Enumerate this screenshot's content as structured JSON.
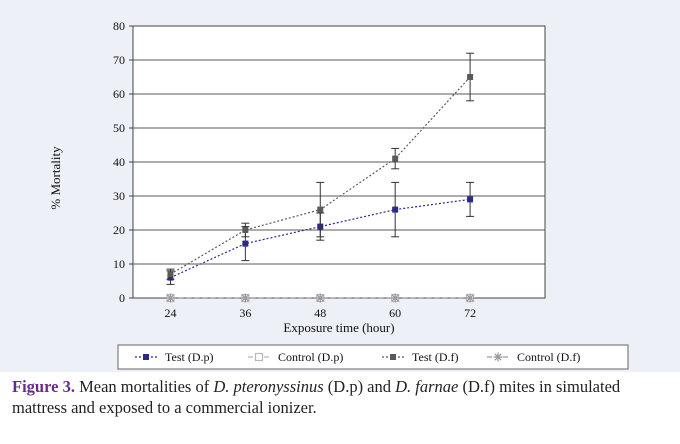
{
  "chart_data": {
    "type": "line",
    "title": "",
    "xlabel": "Exposure time (hour)",
    "ylabel": "% Mortality",
    "ylim": [
      0,
      80
    ],
    "y_ticks": [
      "0",
      "10",
      "20",
      "30",
      "40",
      "50",
      "60",
      "70",
      "80"
    ],
    "x": [
      24,
      36,
      48,
      60,
      72
    ],
    "x_ticks": [
      "24",
      "36",
      "48",
      "60",
      "72"
    ],
    "grid": true,
    "legend_placement": "bottom",
    "series": [
      {
        "name": "Test (D.p)",
        "values": [
          6,
          16,
          21,
          26,
          29
        ],
        "errors": [
          2,
          5,
          4,
          8,
          5
        ],
        "color": "#2a2a8a",
        "marker": "square",
        "line": "dotted"
      },
      {
        "name": "Control (D.p)",
        "values": [
          0,
          0,
          0,
          0,
          0
        ],
        "errors": [
          0,
          0,
          0,
          0,
          0
        ],
        "color": "#b8b8b8",
        "marker": "open-square",
        "line": "dashed"
      },
      {
        "name": "Test (D.f)",
        "values": [
          7,
          20,
          26,
          41,
          65
        ],
        "errors": [
          1.5,
          2,
          8,
          3,
          7
        ],
        "color": "#5a5a5a",
        "marker": "square",
        "line": "dotted"
      },
      {
        "name": "Control (D.f)",
        "values": [
          0,
          0,
          0,
          0,
          0
        ],
        "errors": [
          0,
          0,
          0,
          0,
          0
        ],
        "color": "#9a9a9a",
        "marker": "star",
        "line": "dashed"
      }
    ]
  },
  "caption": {
    "label": "Figure 3.",
    "part1": " Mean mortalities of ",
    "species1": "D. pteronyssinus",
    "part2": " (D.p) and ",
    "species2": "D. farnae",
    "part3": " (D.f) mites in simulated mattress and exposed to a commercial ionizer."
  }
}
